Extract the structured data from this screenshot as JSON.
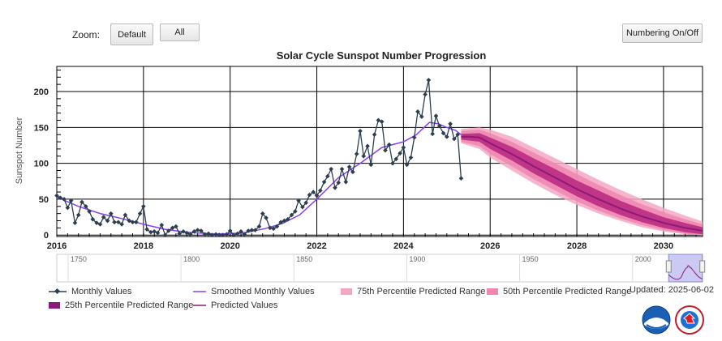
{
  "toolbar": {
    "zoom_label": "Zoom:",
    "default_label": "Default",
    "all_label": "All",
    "numbering_label": "Numbering On/Off"
  },
  "updated_text": "Updated: 2025-06-02",
  "legend": {
    "monthly": "Monthly Values",
    "smoothed": "Smoothed Monthly Values",
    "p75": "75th Percentile Predicted Range",
    "p50": "50th Percentile Predicted Range",
    "p25": "25th Percentile Predicted Range",
    "predicted": "Predicted Values"
  },
  "colors": {
    "monthly": "#2c3e50",
    "smoothed": "#8a3ffc",
    "predicted": "#8b1a7a",
    "p75": "#f4a7c4",
    "p50": "#ee86b0",
    "p25": "#b8267e",
    "navigator_fill": "#b8b8f2"
  },
  "logos": {
    "noaa": "noaa-logo",
    "nws": "nws-logo"
  },
  "chart_data": {
    "type": "line",
    "title": "Solar Cycle Sunspot Number Progression",
    "xlabel": "",
    "ylabel": "Sunspot Number",
    "xlim": [
      2016.0,
      2030.9
    ],
    "ylim": [
      -2,
      235
    ],
    "x_ticks": [
      2016,
      2018,
      2020,
      2022,
      2024,
      2026,
      2028,
      2030
    ],
    "y_ticks": [
      0,
      50,
      100,
      150,
      200
    ],
    "grid": true,
    "monthly": [
      [
        2016.0,
        55
      ],
      [
        2016.08,
        52
      ],
      [
        2016.17,
        50
      ],
      [
        2016.25,
        38
      ],
      [
        2016.33,
        48
      ],
      [
        2016.42,
        17
      ],
      [
        2016.5,
        28
      ],
      [
        2016.58,
        46
      ],
      [
        2016.67,
        40
      ],
      [
        2016.75,
        33
      ],
      [
        2016.83,
        22
      ],
      [
        2016.92,
        17
      ],
      [
        2017.0,
        15
      ],
      [
        2017.08,
        25
      ],
      [
        2017.17,
        20
      ],
      [
        2017.25,
        30
      ],
      [
        2017.33,
        18
      ],
      [
        2017.42,
        18
      ],
      [
        2017.5,
        15
      ],
      [
        2017.58,
        28
      ],
      [
        2017.67,
        20
      ],
      [
        2017.75,
        18
      ],
      [
        2017.83,
        18
      ],
      [
        2017.92,
        30
      ],
      [
        2018.0,
        40
      ],
      [
        2018.08,
        8
      ],
      [
        2018.17,
        4
      ],
      [
        2018.25,
        5
      ],
      [
        2018.33,
        3
      ],
      [
        2018.42,
        14
      ],
      [
        2018.5,
        0
      ],
      [
        2018.58,
        6
      ],
      [
        2018.67,
        10
      ],
      [
        2018.75,
        12
      ],
      [
        2018.83,
        2
      ],
      [
        2018.92,
        5
      ],
      [
        2019.0,
        3
      ],
      [
        2019.08,
        1
      ],
      [
        2019.17,
        5
      ],
      [
        2019.25,
        7
      ],
      [
        2019.33,
        6
      ],
      [
        2019.42,
        1
      ],
      [
        2019.5,
        2
      ],
      [
        2019.58,
        0
      ],
      [
        2019.67,
        1
      ],
      [
        2019.75,
        0
      ],
      [
        2019.83,
        0
      ],
      [
        2019.92,
        1
      ],
      [
        2020.0,
        6
      ],
      [
        2020.08,
        0
      ],
      [
        2020.17,
        2
      ],
      [
        2020.25,
        5
      ],
      [
        2020.33,
        1
      ],
      [
        2020.42,
        6
      ],
      [
        2020.5,
        7
      ],
      [
        2020.58,
        7
      ],
      [
        2020.67,
        12
      ],
      [
        2020.75,
        30
      ],
      [
        2020.83,
        24
      ],
      [
        2020.92,
        10
      ],
      [
        2021.0,
        9
      ],
      [
        2021.08,
        12
      ],
      [
        2021.17,
        18
      ],
      [
        2021.25,
        20
      ],
      [
        2021.33,
        22
      ],
      [
        2021.42,
        28
      ],
      [
        2021.5,
        33
      ],
      [
        2021.58,
        48
      ],
      [
        2021.67,
        39
      ],
      [
        2021.75,
        45
      ],
      [
        2021.83,
        56
      ],
      [
        2021.92,
        60
      ],
      [
        2022.0,
        55
      ],
      [
        2022.08,
        62
      ],
      [
        2022.17,
        74
      ],
      [
        2022.25,
        82
      ],
      [
        2022.33,
        92
      ],
      [
        2022.42,
        66
      ],
      [
        2022.5,
        73
      ],
      [
        2022.58,
        92
      ],
      [
        2022.67,
        74
      ],
      [
        2022.75,
        95
      ],
      [
        2022.83,
        88
      ],
      [
        2022.92,
        113
      ],
      [
        2023.0,
        145
      ],
      [
        2023.08,
        110
      ],
      [
        2023.17,
        124
      ],
      [
        2023.25,
        98
      ],
      [
        2023.33,
        140
      ],
      [
        2023.42,
        160
      ],
      [
        2023.5,
        158
      ],
      [
        2023.58,
        118
      ],
      [
        2023.67,
        126
      ],
      [
        2023.75,
        100
      ],
      [
        2023.83,
        106
      ],
      [
        2023.92,
        114
      ],
      [
        2024.0,
        122
      ],
      [
        2024.08,
        98
      ],
      [
        2024.17,
        108
      ],
      [
        2024.25,
        136
      ],
      [
        2024.33,
        172
      ],
      [
        2024.42,
        165
      ],
      [
        2024.5,
        196
      ],
      [
        2024.58,
        216
      ],
      [
        2024.67,
        141
      ],
      [
        2024.75,
        166
      ],
      [
        2024.83,
        152
      ],
      [
        2024.92,
        142
      ],
      [
        2025.0,
        137
      ],
      [
        2025.08,
        155
      ],
      [
        2025.17,
        134
      ],
      [
        2025.25,
        140
      ],
      [
        2025.33,
        79
      ]
    ],
    "smoothed": [
      [
        2016.0,
        53
      ],
      [
        2016.5,
        40
      ],
      [
        2017.0,
        30
      ],
      [
        2017.5,
        23
      ],
      [
        2018.0,
        15
      ],
      [
        2018.5,
        8
      ],
      [
        2019.0,
        4
      ],
      [
        2019.5,
        2
      ],
      [
        2019.9,
        1.8
      ],
      [
        2020.3,
        3
      ],
      [
        2020.8,
        9
      ],
      [
        2021.2,
        16
      ],
      [
        2021.6,
        28
      ],
      [
        2022.0,
        50
      ],
      [
        2022.5,
        80
      ],
      [
        2023.0,
        100
      ],
      [
        2023.5,
        122
      ],
      [
        2024.0,
        130
      ],
      [
        2024.3,
        140
      ],
      [
        2024.6,
        157
      ],
      [
        2024.8,
        155
      ],
      [
        2025.0,
        150
      ],
      [
        2025.2,
        146
      ],
      [
        2025.33,
        140
      ]
    ],
    "predicted": [
      [
        2025.33,
        137
      ],
      [
        2025.5,
        137
      ],
      [
        2025.75,
        136
      ],
      [
        2026.0,
        128
      ],
      [
        2026.5,
        113
      ],
      [
        2027.0,
        96
      ],
      [
        2027.5,
        80
      ],
      [
        2028.0,
        64
      ],
      [
        2028.5,
        50
      ],
      [
        2029.0,
        37
      ],
      [
        2029.5,
        26
      ],
      [
        2030.0,
        17
      ],
      [
        2030.5,
        10
      ],
      [
        2030.9,
        6
      ]
    ],
    "p25_range": {
      "x": [
        2025.33,
        2025.75,
        2026.0,
        2026.5,
        2027.0,
        2027.5,
        2028.0,
        2028.5,
        2029.0,
        2029.5,
        2030.0,
        2030.5,
        2030.9
      ],
      "low": [
        133,
        130,
        120,
        104,
        86,
        70,
        54,
        40,
        28,
        18,
        10,
        4,
        1
      ],
      "high": [
        141,
        142,
        136,
        123,
        107,
        92,
        76,
        62,
        48,
        36,
        25,
        17,
        11
      ]
    },
    "p50_range": {
      "x": [
        2025.33,
        2025.75,
        2026.0,
        2026.5,
        2027.0,
        2027.5,
        2028.0,
        2028.5,
        2029.0,
        2029.5,
        2030.0,
        2030.5,
        2030.9
      ],
      "low": [
        130,
        124,
        113,
        96,
        78,
        62,
        47,
        34,
        23,
        14,
        7,
        2,
        0
      ],
      "high": [
        145,
        147,
        142,
        130,
        115,
        100,
        85,
        70,
        56,
        43,
        32,
        22,
        15
      ]
    },
    "p75_range": {
      "x": [
        2025.33,
        2025.75,
        2026.0,
        2026.5,
        2027.0,
        2027.5,
        2028.0,
        2028.5,
        2029.0,
        2029.5,
        2030.0,
        2030.5,
        2030.9
      ],
      "low": [
        128,
        120,
        108,
        90,
        72,
        56,
        42,
        30,
        20,
        11,
        5,
        1,
        0
      ],
      "high": [
        148,
        150,
        147,
        137,
        122,
        107,
        92,
        77,
        63,
        50,
        38,
        27,
        19
      ]
    }
  },
  "navigator": {
    "x_ticks": [
      1750,
      1800,
      1850,
      1900,
      1950,
      2000
    ],
    "xlim": [
      1745,
      2031
    ],
    "selection": [
      2016.0,
      2030.9
    ]
  }
}
